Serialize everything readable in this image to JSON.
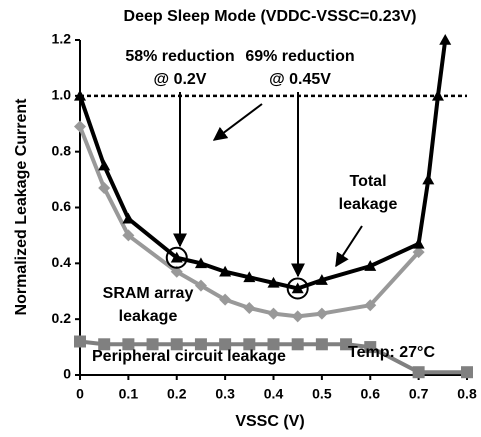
{
  "chart_data": {
    "type": "line",
    "title": "Deep Sleep Mode (VDDC-VSSC=0.23V)",
    "x_label": "VSSC (V)",
    "y_label": "Normalized Leakage Current",
    "xlim": [
      0,
      0.8
    ],
    "ylim": [
      0,
      1.2
    ],
    "xticks": [
      0,
      0.1,
      0.2,
      0.3,
      0.4,
      0.5,
      0.6,
      0.7,
      0.8
    ],
    "yticks": [
      0,
      0.2,
      0.4,
      0.6,
      0.8,
      {
        "value": 1,
        "label": "1.0"
      },
      1.2
    ],
    "reference_line": 1,
    "series": [
      {
        "name": "Total leakage",
        "color": "#000000",
        "marker": "triangle",
        "x": [
          0,
          0.05,
          0.1,
          0.2,
          0.25,
          0.3,
          0.35,
          0.4,
          0.45,
          0.5,
          0.6,
          0.7,
          0.72,
          0.74,
          0.755
        ],
        "values": [
          1.0,
          0.75,
          0.56,
          0.42,
          0.4,
          0.37,
          0.35,
          0.33,
          0.31,
          0.34,
          0.39,
          0.47,
          0.7,
          1.0,
          1.2
        ]
      },
      {
        "name": "SRAM array leakage",
        "color": "#999999",
        "marker": "diamond",
        "x": [
          0,
          0.05,
          0.1,
          0.2,
          0.25,
          0.3,
          0.35,
          0.4,
          0.45,
          0.5,
          0.6,
          0.7
        ],
        "values": [
          0.89,
          0.67,
          0.5,
          0.37,
          0.32,
          0.27,
          0.24,
          0.22,
          0.21,
          0.22,
          0.25,
          0.44
        ]
      },
      {
        "name": "Peripheral circuit leakage",
        "color": "#808080",
        "marker": "square",
        "x": [
          0,
          0.05,
          0.1,
          0.15,
          0.2,
          0.25,
          0.3,
          0.35,
          0.4,
          0.45,
          0.5,
          0.55,
          0.6,
          0.7,
          0.8
        ],
        "values": [
          0.12,
          0.11,
          0.11,
          0.11,
          0.11,
          0.11,
          0.11,
          0.11,
          0.11,
          0.11,
          0.11,
          0.11,
          0.1,
          0.01,
          0.01
        ]
      }
    ],
    "highlights": [
      {
        "series": 0,
        "index": 3
      },
      {
        "series": 0,
        "index": 8
      }
    ],
    "annotations": [
      {
        "lines": [
          "58% reduction",
          "@ 0.2V"
        ]
      },
      {
        "lines": [
          "69% reduction",
          "@ 0.45V"
        ]
      },
      {
        "lines": [
          "Total",
          "leakage"
        ]
      },
      {
        "lines": [
          "SRAM array",
          "leakage"
        ]
      },
      {
        "lines": [
          "Peripheral circuit leakage"
        ]
      },
      {
        "lines": [
          "Temp: 27°C"
        ]
      }
    ]
  }
}
